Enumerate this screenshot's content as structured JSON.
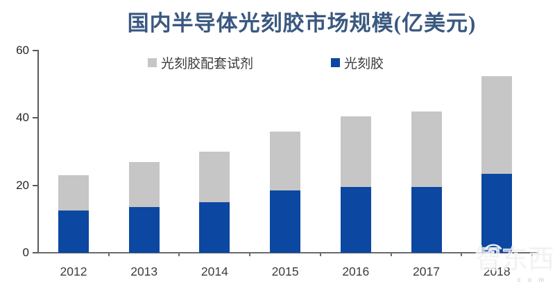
{
  "title": "国内半导体光刻胶市场规模(亿美元)",
  "legend": {
    "items": [
      {
        "label": "光刻胶配套试剂",
        "color": "#C6C6C6"
      },
      {
        "label": "光刻胶",
        "color": "#0C47A1"
      }
    ]
  },
  "chart_data": {
    "type": "bar",
    "stacked": true,
    "title": "国内半导体光刻胶市场规模(亿美元)",
    "categories": [
      "2012",
      "2013",
      "2014",
      "2015",
      "2016",
      "2017",
      "2018"
    ],
    "series": [
      {
        "name": "光刻胶",
        "color": "#0C47A1",
        "values": [
          12.5,
          13.5,
          15,
          18.5,
          19.5,
          19.5,
          23.5
        ]
      },
      {
        "name": "光刻胶配套试剂",
        "color": "#C6C6C6",
        "values": [
          10.5,
          13.5,
          15,
          17.5,
          21,
          22.5,
          29
        ]
      }
    ],
    "totals": [
      23,
      27,
      30,
      36,
      40.5,
      42,
      52.5
    ],
    "xlabel": "",
    "ylabel": "",
    "ylim": [
      0,
      60
    ],
    "yticks": [
      0,
      20,
      40,
      60
    ],
    "legend_position": "top",
    "grid": false
  },
  "watermark": {
    "brand": "智东西",
    "small_text": "c o m"
  }
}
